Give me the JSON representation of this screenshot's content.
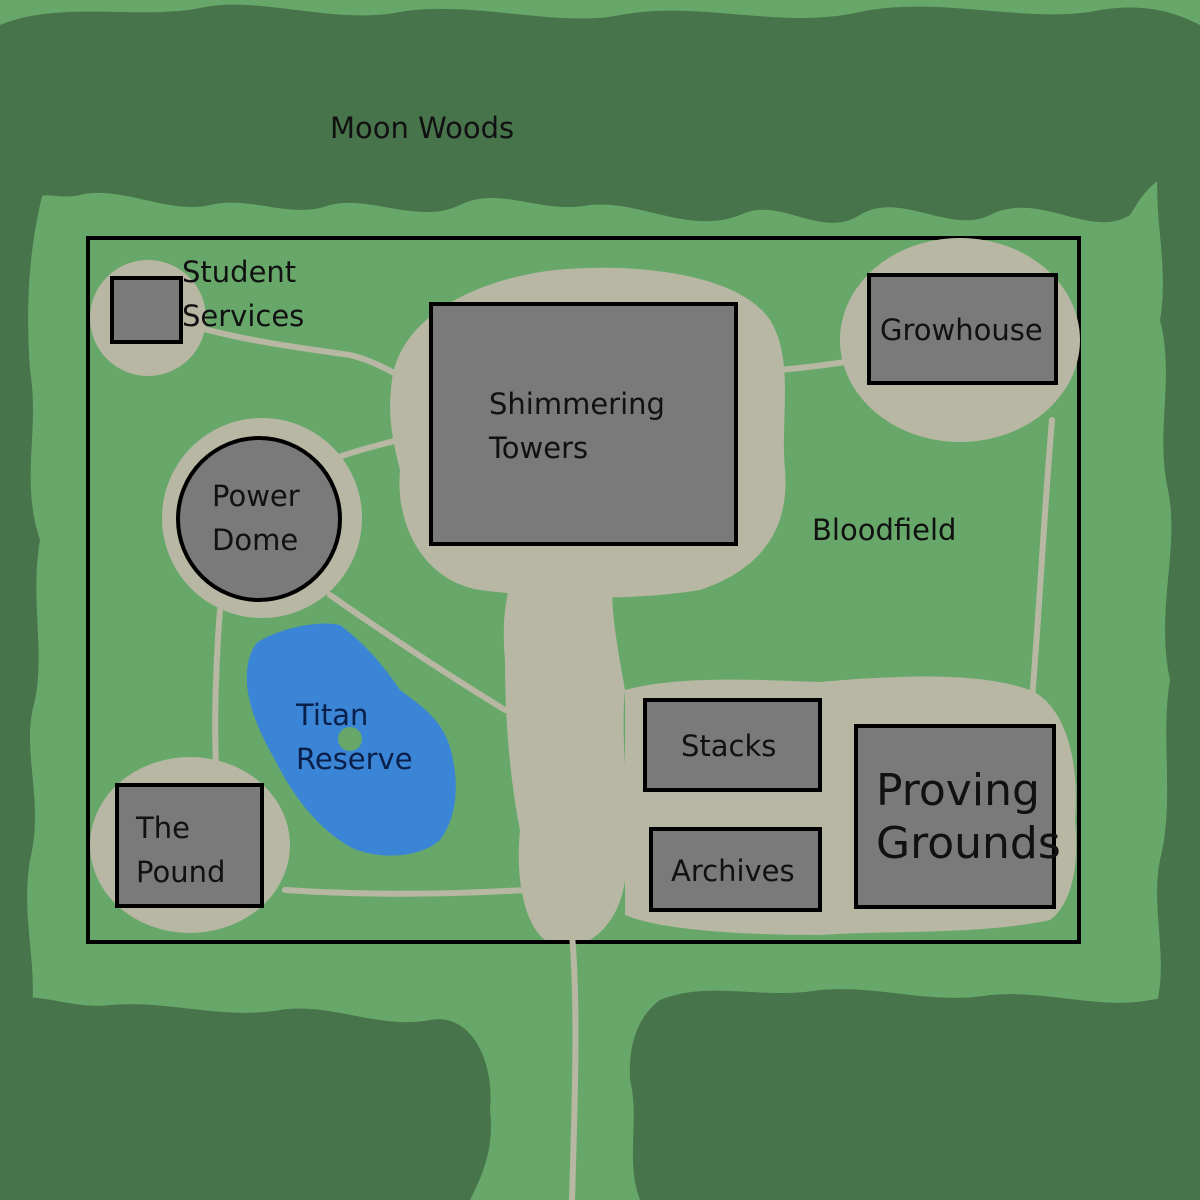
{
  "map": {
    "regions": {
      "forest": "Moon Woods",
      "field": "Bloodfield",
      "lake": "Titan Reserve"
    },
    "buildings": {
      "student_services": [
        "Student",
        "Services"
      ],
      "shimmering_towers": [
        "Shimmering",
        "Towers"
      ],
      "growhouse": "Growhouse",
      "power_dome": [
        "Power",
        "Dome"
      ],
      "stacks": "Stacks",
      "archives": "Archives",
      "proving_grounds": [
        "Proving",
        "Grounds"
      ],
      "the_pound": [
        "The",
        "Pound"
      ]
    }
  },
  "colors": {
    "grass": "#67a86a",
    "forest": "#48744b",
    "path": "#b7b7a3",
    "building": "#7a7a7a",
    "outline": "#000000",
    "water": "#3a85d6"
  }
}
